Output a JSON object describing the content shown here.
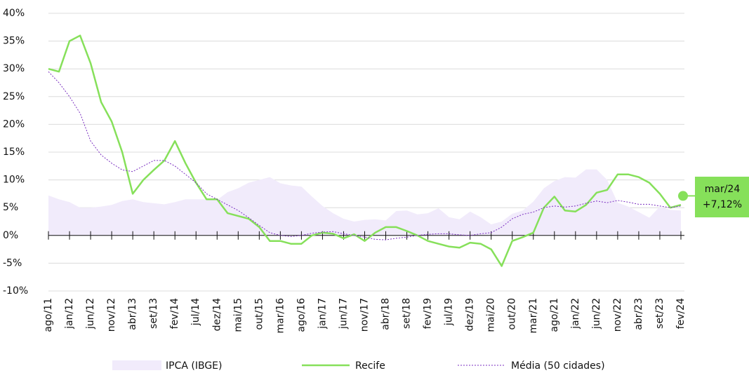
{
  "chart_data": {
    "type": "line",
    "categories": [
      "ago/11",
      null,
      "jan/12",
      null,
      "jun/12",
      null,
      "nov/12",
      null,
      "abr/13",
      null,
      "set/13",
      null,
      "fev/14",
      null,
      "jul/14",
      null,
      "dez/14",
      null,
      "mai/15",
      null,
      "out/15",
      null,
      "mar/16",
      null,
      "ago/16",
      null,
      "jan/17",
      null,
      "jun/17",
      null,
      "nov/17",
      null,
      "abr/18",
      null,
      "set/18",
      null,
      "fev/19",
      null,
      "jul/19",
      null,
      "dez/19",
      null,
      "mai/20",
      null,
      "out/20",
      null,
      "mar/21",
      null,
      "ago/21",
      null,
      "jan/22",
      null,
      "jun/22",
      null,
      "nov/22",
      null,
      "abr/23",
      null,
      "set/23",
      null,
      "fev/24"
    ],
    "series": [
      {
        "name": "IPCA (IBGE)",
        "kind": "area",
        "color": "#f1ebfb",
        "values": [
          7.2,
          6.5,
          6,
          5,
          5,
          5.2,
          5.5,
          6.2,
          6.5,
          6,
          5.8,
          5.6,
          6,
          6.5,
          6.5,
          6.5,
          6.4,
          7.8,
          8.5,
          9.5,
          10,
          10.5,
          9.4,
          9,
          8.8,
          7,
          5.3,
          4,
          3,
          2.5,
          2.8,
          2.9,
          2.7,
          4.4,
          4.5,
          3.8,
          4,
          4.9,
          3.3,
          2.9,
          4.3,
          3.3,
          2,
          2.5,
          3.9,
          4.5,
          6.1,
          8.5,
          9.8,
          10.5,
          10.4,
          11.9,
          11.9,
          10,
          5.9,
          5.2,
          4.2,
          3.2,
          5.2,
          4.6,
          4.5
        ]
      },
      {
        "name": "Recife",
        "kind": "line",
        "color": "#86e05a",
        "values": [
          30,
          29.5,
          35,
          36,
          31,
          24,
          20.5,
          15,
          7.5,
          10,
          11.8,
          13.5,
          17,
          13,
          9.5,
          6.5,
          6.5,
          4,
          3.5,
          3,
          1.5,
          -1,
          -1,
          -1.5,
          -1.5,
          0,
          0.5,
          0.3,
          -0.5,
          0.2,
          -1,
          0.5,
          1.5,
          1.5,
          0.8,
          0,
          -1,
          -1.5,
          -2,
          -2.2,
          -1.3,
          -1.5,
          -2.5,
          -5.5,
          -1,
          -0.3,
          0.5,
          5,
          7,
          4.5,
          4.3,
          5.5,
          7.7,
          8.2,
          11,
          11,
          10.5,
          9.5,
          7.5,
          5,
          5.5
        ]
      },
      {
        "name": "Média (50 cidades)",
        "kind": "dotted",
        "color": "#7a2ec0",
        "values": [
          29.5,
          27.5,
          25,
          22,
          17,
          14.5,
          13,
          11.8,
          11.5,
          12.5,
          13.5,
          13.5,
          12.5,
          11,
          9.5,
          7.5,
          6.5,
          5.5,
          4.5,
          3.2,
          1.8,
          0.5,
          0,
          -0.2,
          0,
          0.4,
          0.6,
          0.7,
          0.3,
          0,
          -0.3,
          -0.7,
          -0.8,
          -0.5,
          -0.3,
          0,
          0.2,
          0.3,
          0.3,
          0.1,
          0,
          0.3,
          0.5,
          1.5,
          3,
          3.8,
          4.2,
          5,
          5.3,
          5.1,
          5.3,
          5.8,
          6.2,
          5.9,
          6.3,
          6,
          5.6,
          5.6,
          5.3,
          5,
          5.3
        ]
      }
    ],
    "annotation": {
      "label": "mar/24",
      "value": 7.12,
      "value_label": "+7,12%"
    },
    "ylim": [
      -10,
      40
    ],
    "yticks": [
      {
        "value": -10,
        "label": "-10%"
      },
      {
        "value": -5,
        "label": "-5%"
      },
      {
        "value": 0,
        "label": "0%"
      },
      {
        "value": 5,
        "label": "5%"
      },
      {
        "value": 10,
        "label": "10%"
      },
      {
        "value": 15,
        "label": "15%"
      },
      {
        "value": 20,
        "label": "20%"
      },
      {
        "value": 25,
        "label": "25%"
      },
      {
        "value": 30,
        "label": "30%"
      },
      {
        "value": 35,
        "label": "35%"
      },
      {
        "value": 40,
        "label": "40%"
      }
    ],
    "grid": true,
    "legend": "bottom"
  }
}
